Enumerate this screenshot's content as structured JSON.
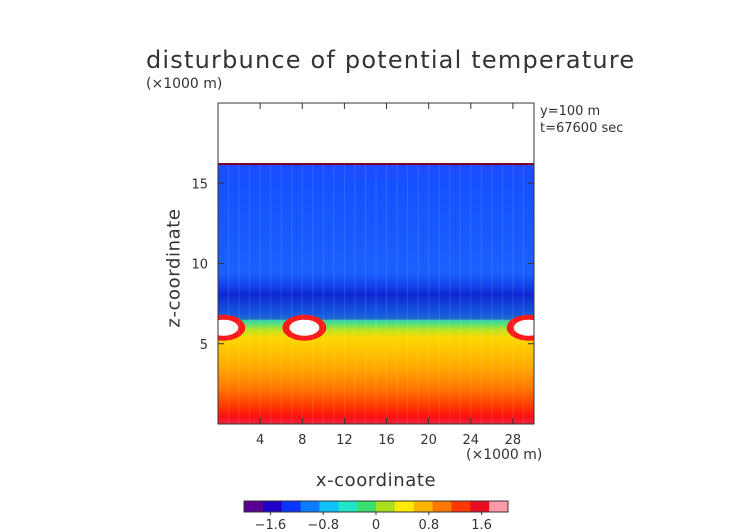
{
  "chart_data": {
    "type": "heatmap",
    "title": "disturbunce of potential temperature",
    "xlabel": "x-coordinate",
    "ylabel": "z-coordinate",
    "x_unit": "(×1000 m)",
    "z_unit": "(×1000 m)",
    "annotations": [
      "y=100 m",
      "t=67600 sec"
    ],
    "xlim": [
      0,
      30
    ],
    "ylim": [
      0,
      20
    ],
    "x_ticks": [
      4,
      8,
      12,
      16,
      20,
      24,
      28
    ],
    "y_ticks": [
      5,
      10,
      15
    ],
    "colorbar": {
      "range": [
        -2.0,
        2.0
      ],
      "ticks": [
        {
          "value": -1.6,
          "label": "−1.6"
        },
        {
          "value": -0.8,
          "label": "−0.8"
        },
        {
          "value": 0,
          "label": "0"
        },
        {
          "value": 0.8,
          "label": "0.8"
        },
        {
          "value": 1.6,
          "label": "1.6"
        }
      ],
      "colors": [
        "#5a0090",
        "#1f00c8",
        "#0a36ff",
        "#0a7cff",
        "#10c0f8",
        "#20e6c8",
        "#38e070",
        "#a8e020",
        "#ffea00",
        "#ffb400",
        "#ff7800",
        "#ff3800",
        "#e80e20",
        "#ff9aa8"
      ]
    },
    "domain_top_z": 16.2,
    "cold_cells_x": [
      0.5,
      8.2,
      29.5
    ],
    "cold_cell_z": 6.0
  }
}
